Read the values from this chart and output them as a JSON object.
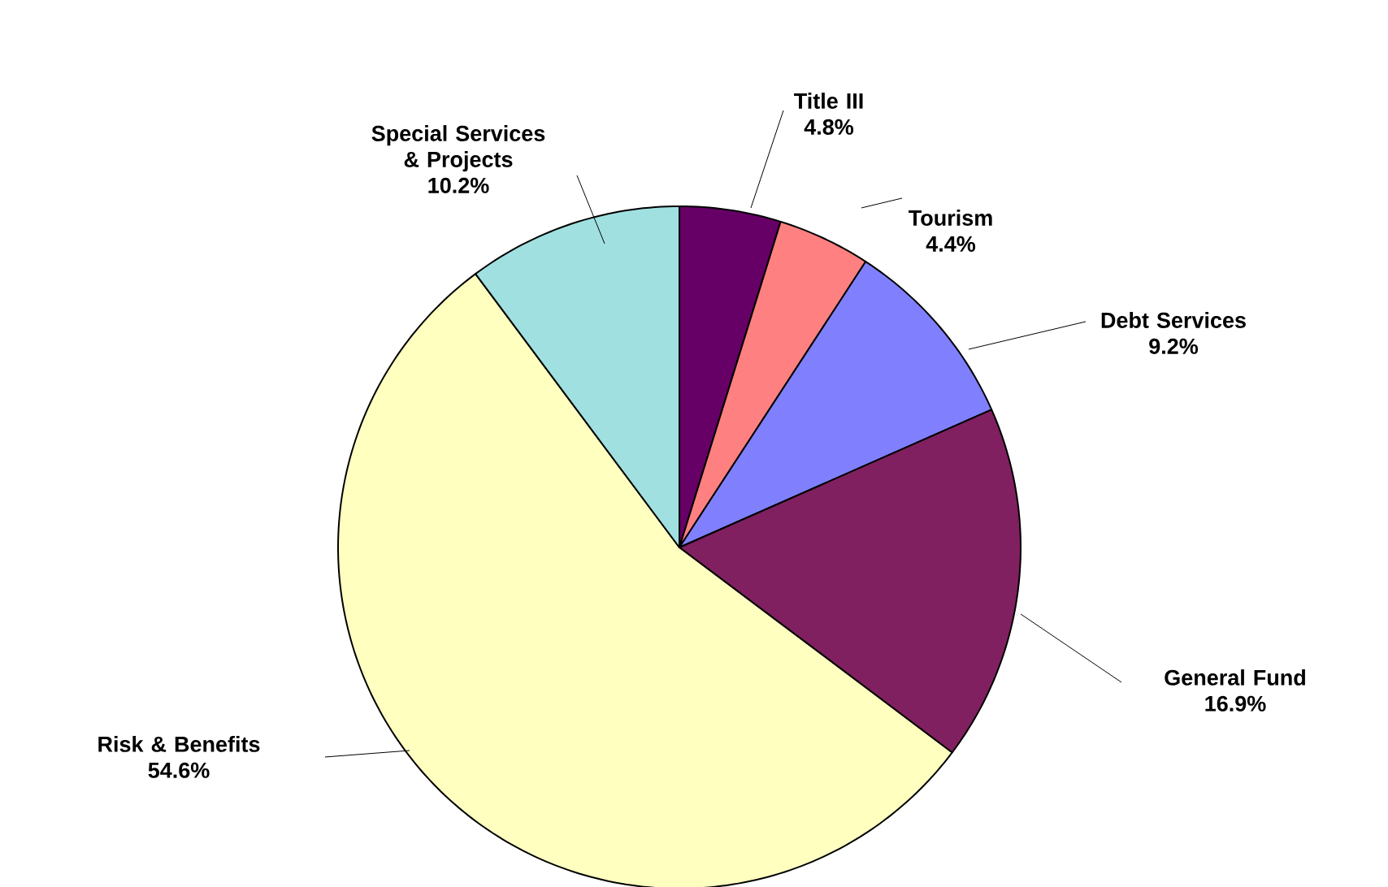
{
  "chart_data": {
    "type": "pie",
    "categories": [
      "Title III",
      "Tourism",
      "Debt Services",
      "General Fund",
      "Risk & Benefits",
      "Special Services & Projects"
    ],
    "values": [
      4.8,
      4.4,
      9.2,
      16.9,
      54.6,
      10.2
    ],
    "colors": [
      "#660066",
      "#ff8080",
      "#8080ff",
      "#802060",
      "#ffffc0",
      "#a0e0e0"
    ],
    "value_labels": [
      "4.8%",
      "4.4%",
      "9.2%",
      "16.9%",
      "54.6%",
      "10.2%"
    ]
  }
}
